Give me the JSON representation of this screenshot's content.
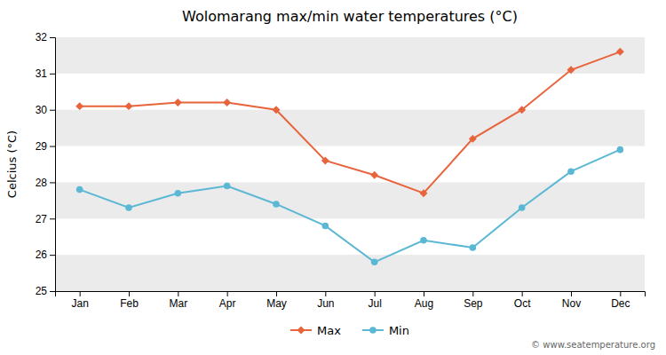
{
  "chart_data": {
    "type": "line",
    "title": "Wolomarang max/min water temperatures (°C)",
    "ylabel": "Celcius (°C)",
    "categories": [
      "Jan",
      "Feb",
      "Mar",
      "Apr",
      "May",
      "Jun",
      "Jul",
      "Aug",
      "Sep",
      "Oct",
      "Nov",
      "Dec"
    ],
    "series": [
      {
        "name": "Max",
        "color": "#E8643C",
        "marker": "diamond",
        "values": [
          30.1,
          30.1,
          30.2,
          30.2,
          30.0,
          28.6,
          28.2,
          27.7,
          29.2,
          30.0,
          31.1,
          31.6
        ]
      },
      {
        "name": "Min",
        "color": "#5BB8D4",
        "marker": "circle",
        "values": [
          27.8,
          27.3,
          27.7,
          27.9,
          27.4,
          26.8,
          25.8,
          26.4,
          26.2,
          27.3,
          28.3,
          28.9
        ]
      }
    ],
    "ylim": [
      25,
      32
    ],
    "yticks": [
      25,
      26,
      27,
      28,
      29,
      30,
      31,
      32
    ],
    "grid": true,
    "legend": "bottom",
    "annotations": [
      "© www.seatemperature.org"
    ]
  }
}
